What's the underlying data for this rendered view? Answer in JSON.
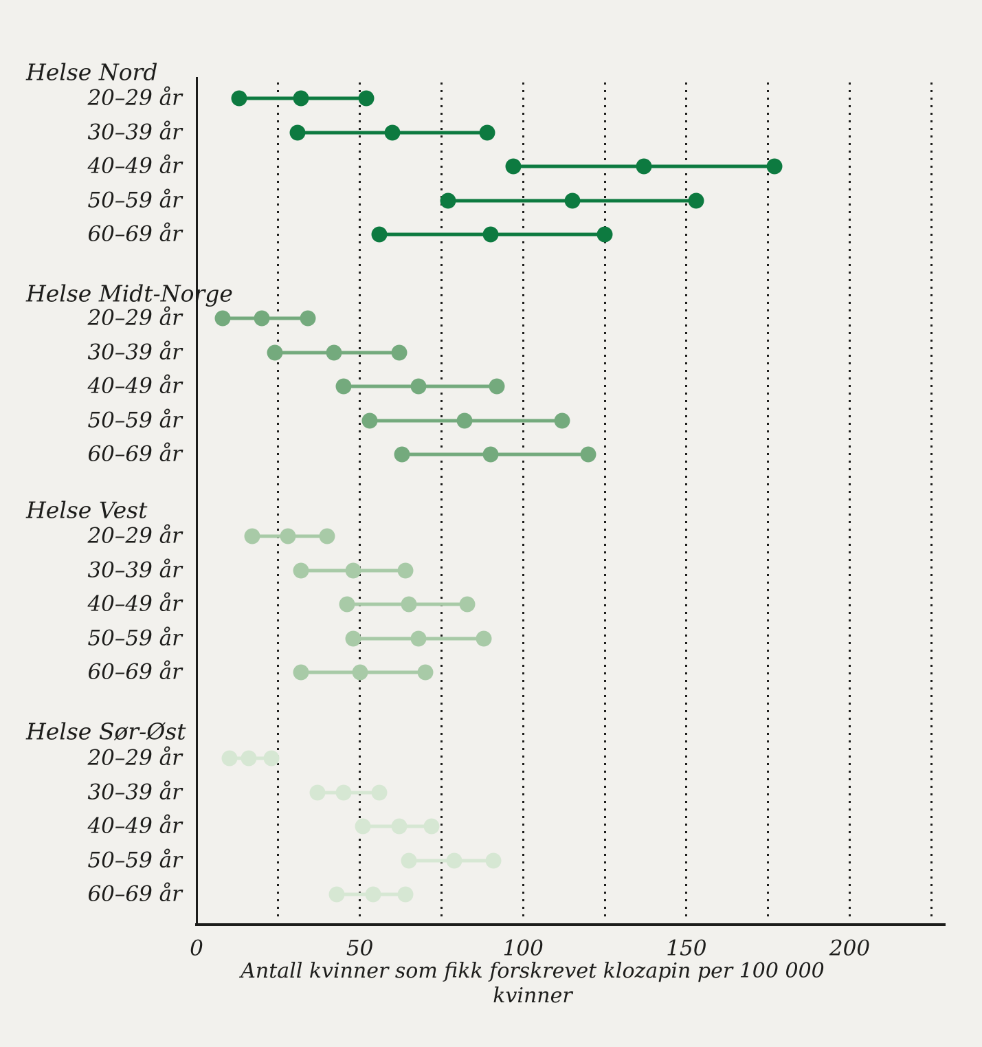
{
  "chart_data": {
    "type": "dumbbell",
    "title": "",
    "xlabel": "Antall kvinner som fikk forskrevet klozapin per 100 000 kvinner",
    "x_tick_labels": [
      "0",
      "50",
      "100",
      "150",
      "200"
    ],
    "x_tick_values": [
      0,
      50,
      100,
      150,
      200
    ],
    "xlim": [
      0,
      228
    ],
    "gridline_values": [
      25,
      50,
      75,
      100,
      125,
      150,
      175,
      200,
      225
    ],
    "grid_style": "dotted-vertical",
    "point_meaning": [
      "low",
      "mid",
      "high"
    ],
    "legend_position": "none",
    "sections": [
      {
        "name": "Helse Nord",
        "color": "#0d7a40",
        "rows": [
          {
            "label": "20–29 år",
            "values": [
              13,
              32,
              52
            ]
          },
          {
            "label": "30–39 år",
            "values": [
              31,
              60,
              89
            ]
          },
          {
            "label": "40–49 år",
            "values": [
              97,
              137,
              177
            ]
          },
          {
            "label": "50–59 år",
            "values": [
              77,
              115,
              153
            ]
          },
          {
            "label": "60–69 år",
            "values": [
              56,
              90,
              125
            ]
          }
        ]
      },
      {
        "name": "Helse Midt-Norge",
        "color": "#74aa7d",
        "rows": [
          {
            "label": "20–29 år",
            "values": [
              8,
              20,
              34
            ]
          },
          {
            "label": "30–39 år",
            "values": [
              24,
              42,
              62
            ]
          },
          {
            "label": "40–49 år",
            "values": [
              45,
              68,
              92
            ]
          },
          {
            "label": "50–59 år",
            "values": [
              53,
              82,
              112
            ]
          },
          {
            "label": "60–69 år",
            "values": [
              63,
              90,
              120
            ]
          }
        ]
      },
      {
        "name": "Helse Vest",
        "color": "#a8caa7",
        "rows": [
          {
            "label": "20–29 år",
            "values": [
              17,
              28,
              40
            ]
          },
          {
            "label": "30–39 år",
            "values": [
              32,
              48,
              64
            ]
          },
          {
            "label": "40–49 år",
            "values": [
              46,
              65,
              83
            ]
          },
          {
            "label": "50–59 år",
            "values": [
              48,
              68,
              88
            ]
          },
          {
            "label": "60–69 år",
            "values": [
              32,
              50,
              70
            ]
          }
        ]
      },
      {
        "name": "Helse Sør-Øst",
        "color": "#d6e7d3",
        "rows": [
          {
            "label": "20–29 år",
            "values": [
              10,
              16,
              23
            ]
          },
          {
            "label": "30–39 år",
            "values": [
              37,
              45,
              56
            ]
          },
          {
            "label": "40–49 år",
            "values": [
              51,
              62,
              72
            ]
          },
          {
            "label": "50–59 år",
            "values": [
              65,
              79,
              91
            ]
          },
          {
            "label": "60–69 år",
            "values": [
              43,
              54,
              64
            ]
          }
        ]
      }
    ],
    "colors": {
      "background": "#f2f1ed",
      "axis": "#1d1d1b",
      "text": "#1d1d1b",
      "grid_dots": "#1d1d1b"
    }
  }
}
